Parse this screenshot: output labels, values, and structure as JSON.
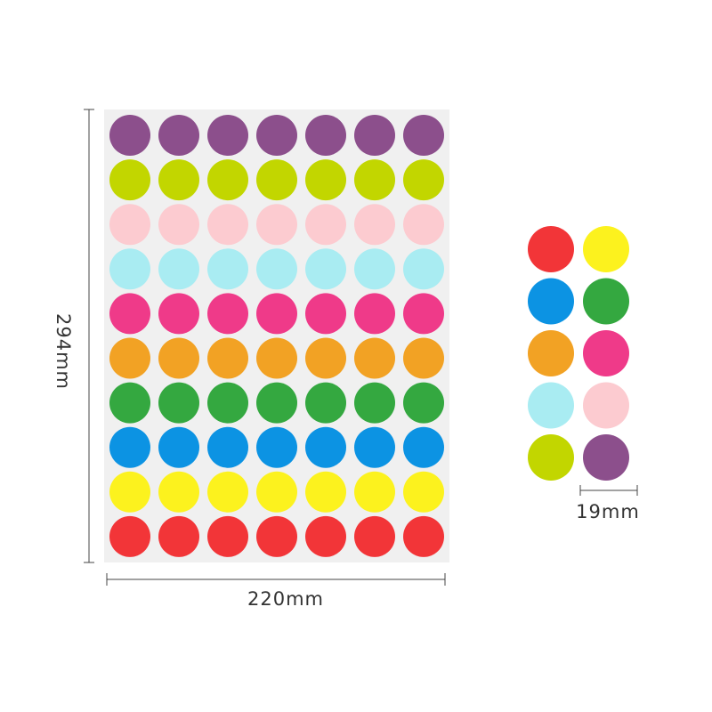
{
  "dimensions": {
    "height": "294mm",
    "width": "220mm",
    "dot_diameter": "19mm"
  }
}
